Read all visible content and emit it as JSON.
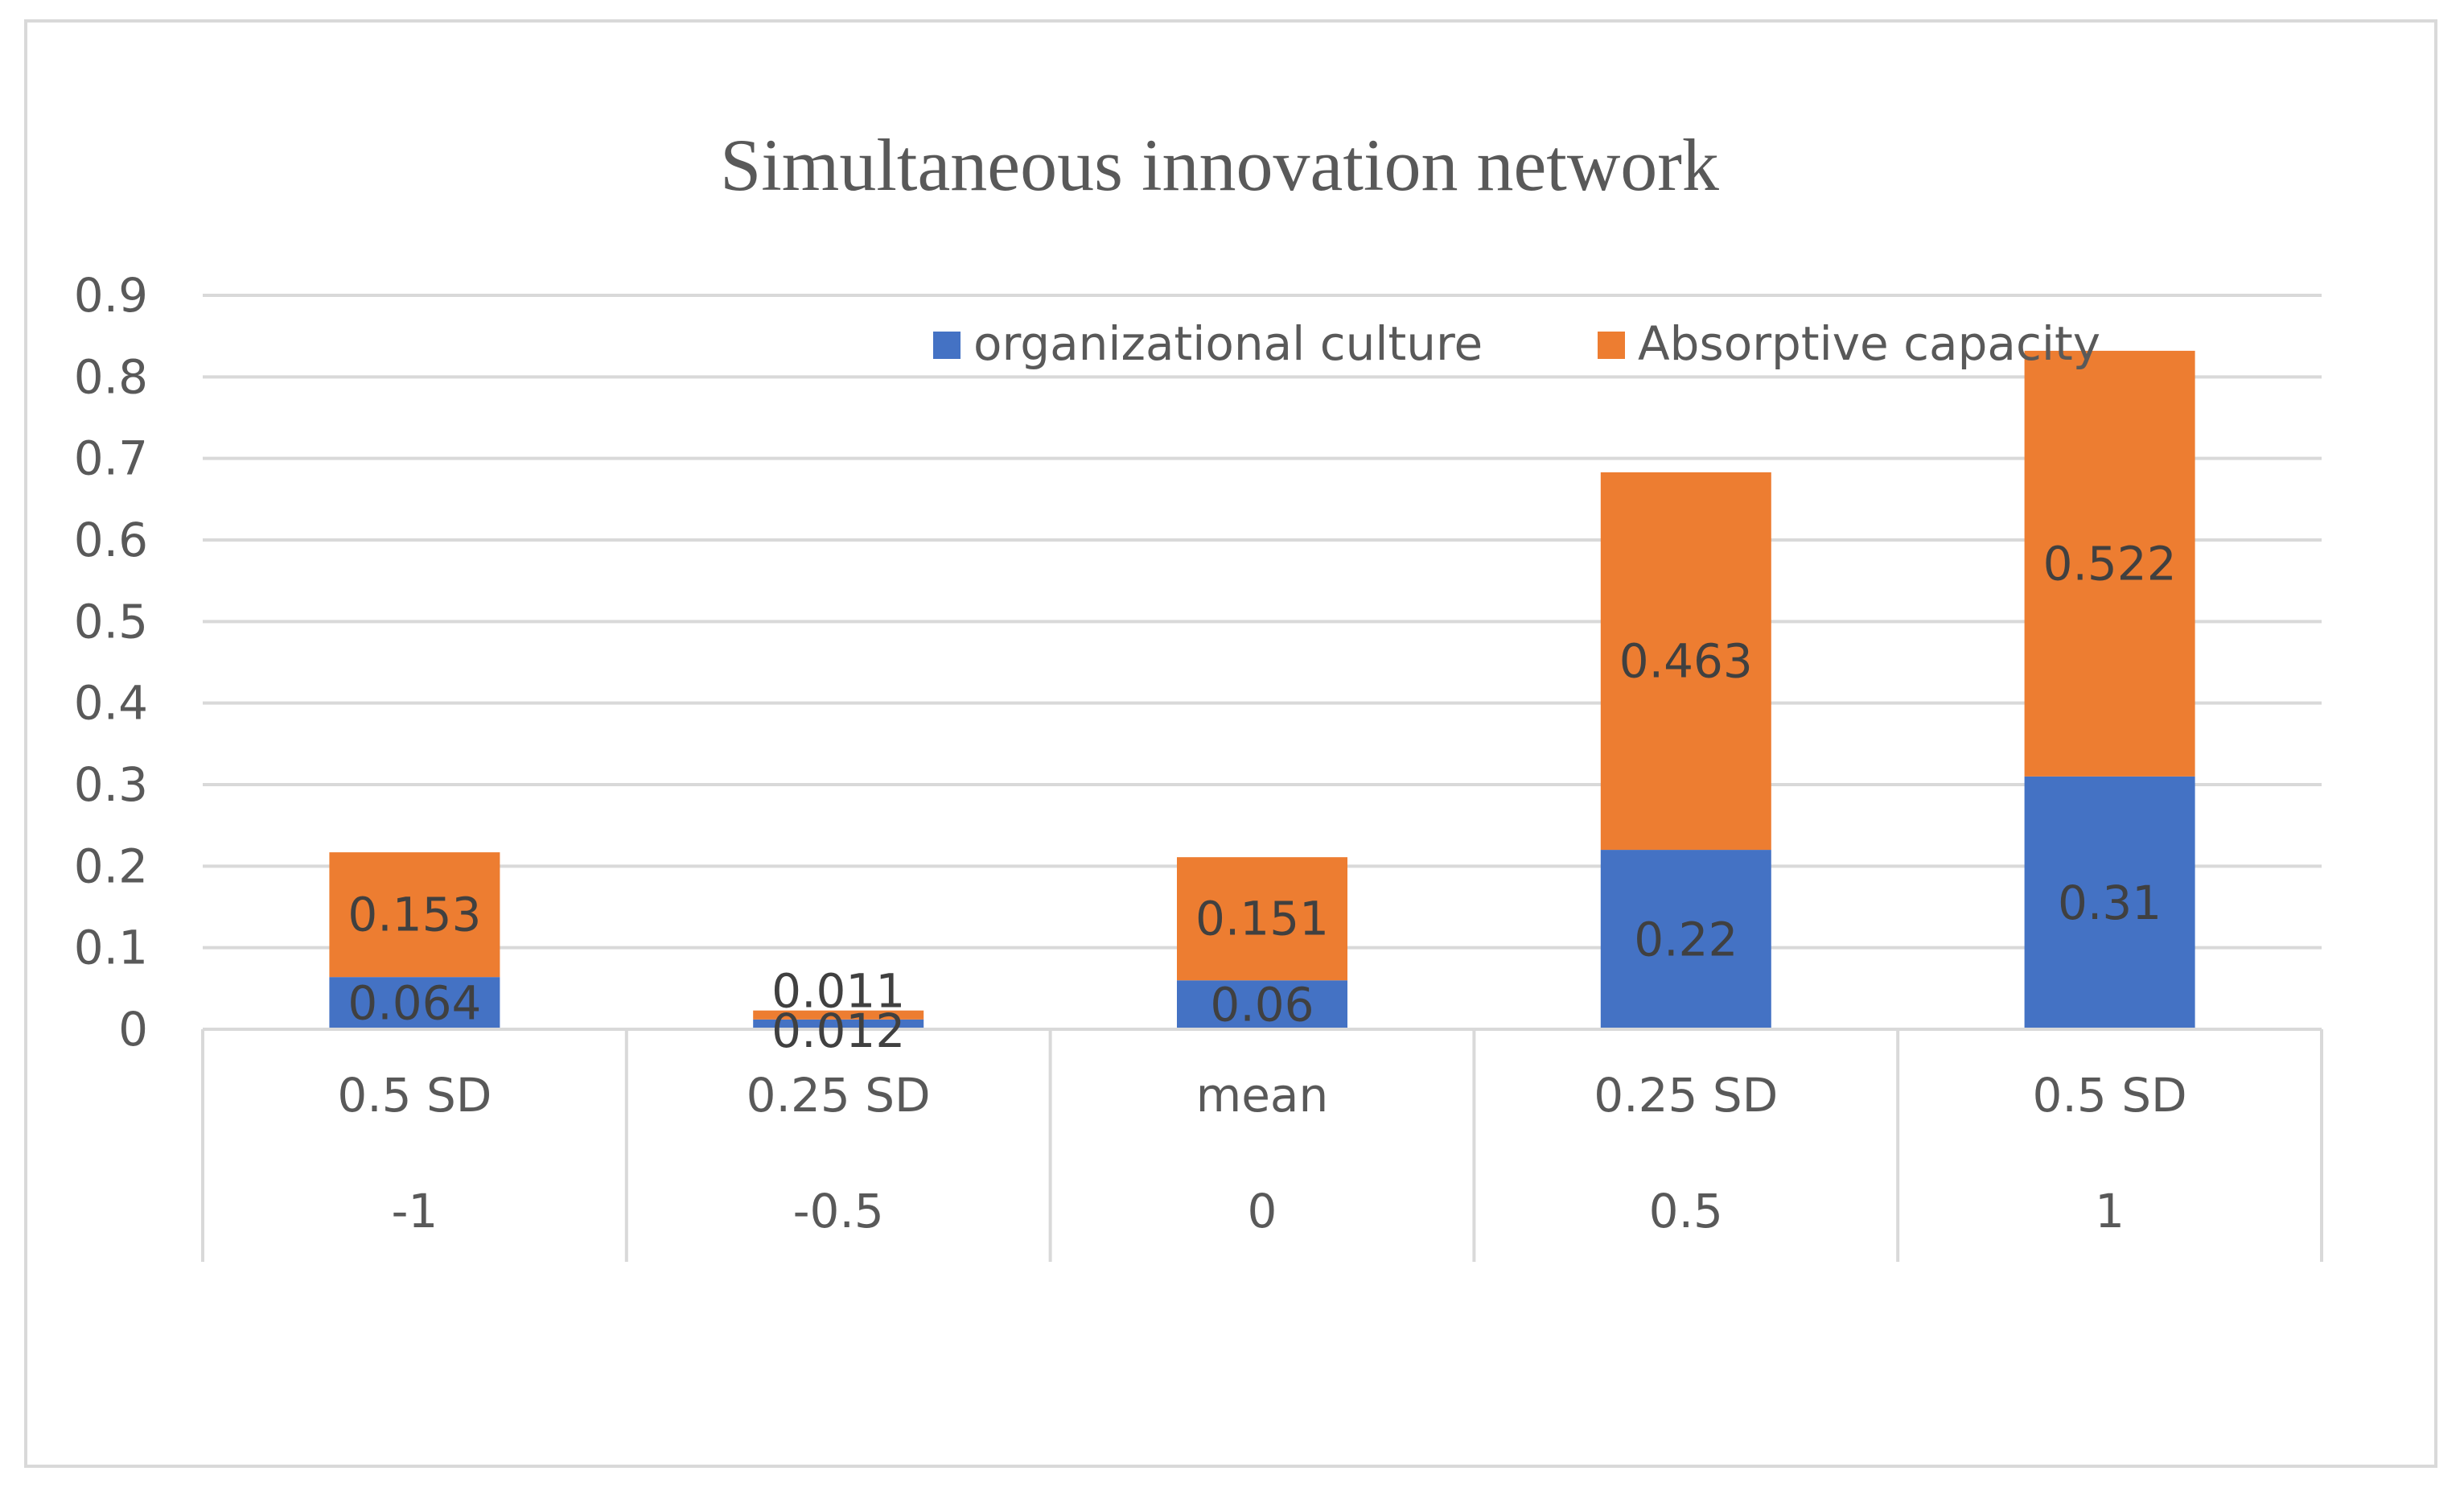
{
  "chart_data": {
    "type": "bar",
    "stacked": true,
    "title": "Simultaneous innovation network",
    "xlabel": "",
    "ylabel": "",
    "ylim": [
      0,
      0.9
    ],
    "yticks": [
      "0",
      "0.1",
      "0.2",
      "0.3",
      "0.4",
      "0.5",
      "0.6",
      "0.7",
      "0.8",
      "0.9"
    ],
    "yticks_values": [
      0,
      0.1,
      0.2,
      0.3,
      0.4,
      0.5,
      0.6,
      0.7,
      0.8,
      0.9
    ],
    "categories_level1": [
      "0.5 SD",
      "0.25 SD",
      "mean",
      "0.25 SD",
      "0.5 SD"
    ],
    "categories_level2": [
      "-1",
      "-0.5",
      "0",
      "0.5",
      "1"
    ],
    "series": [
      {
        "name": "organizational culture",
        "color": "#4472c4",
        "values": [
          0.064,
          0.012,
          0.06,
          0.22,
          0.31
        ],
        "labels": [
          "0.064",
          "0.012",
          "0.06",
          "0.22",
          "0.31"
        ]
      },
      {
        "name": "Absorptive capacity",
        "color": "#ed7d31",
        "values": [
          0.153,
          0.011,
          0.151,
          0.463,
          0.522
        ],
        "labels": [
          "0.153",
          "0.011",
          "0.151",
          "0.463",
          "0.522"
        ]
      }
    ],
    "legend_position": "top-right",
    "grid": true
  }
}
